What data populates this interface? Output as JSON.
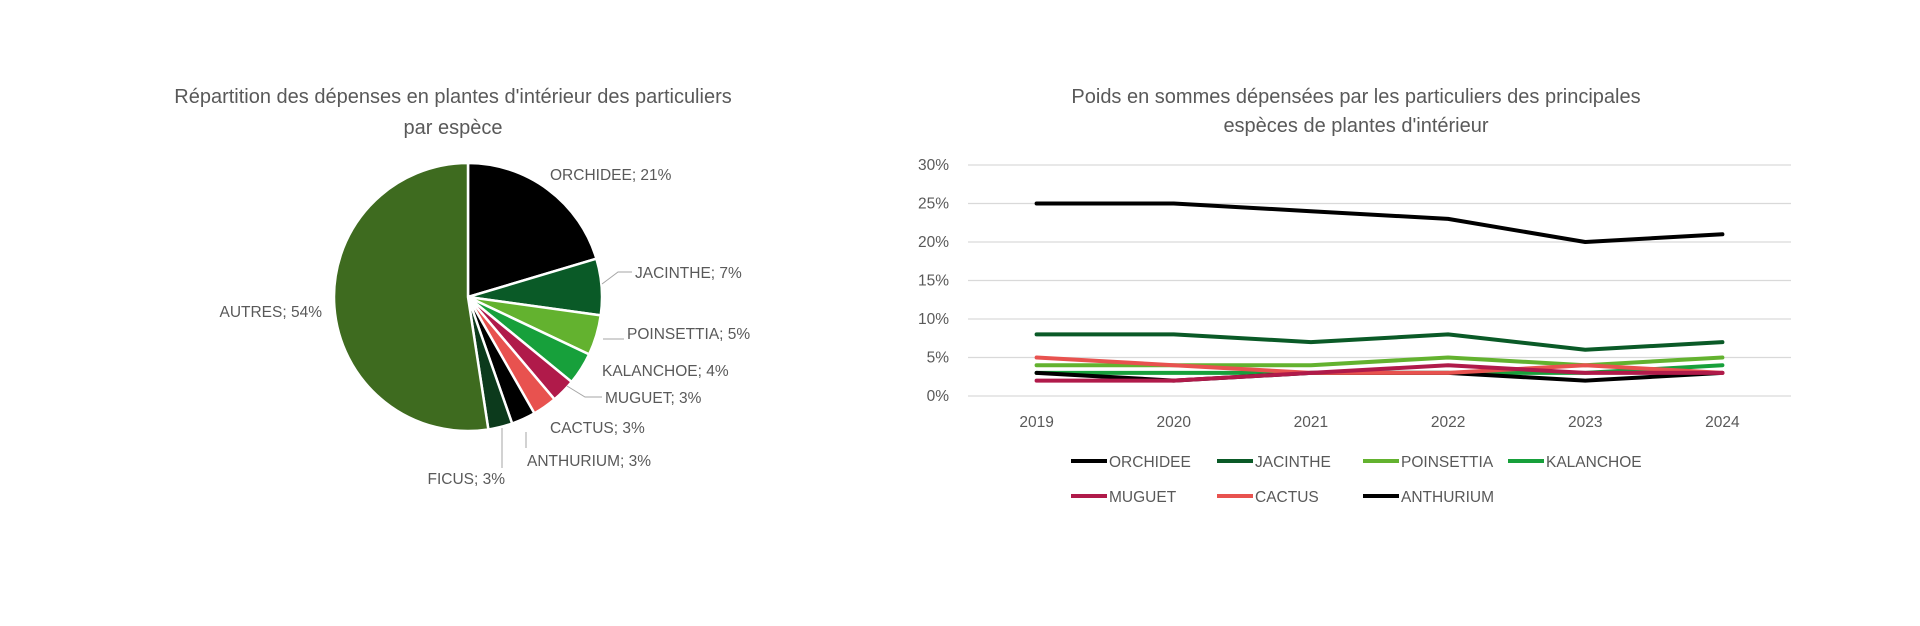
{
  "chart_data": [
    {
      "type": "pie",
      "title_lines": [
        "Répartition des dépenses en plantes d'intérieur des particuliers",
        "par espèce"
      ],
      "slices": [
        {
          "label": "ORCHIDEE",
          "value": 21,
          "display": "ORCHIDEE; 21%",
          "color": "#000000"
        },
        {
          "label": "JACINTHE",
          "value": 7,
          "display": "JACINTHE; 7%",
          "color": "#0a5a27"
        },
        {
          "label": "POINSETTIA",
          "value": 5,
          "display": "POINSETTIA; 5%",
          "color": "#63b22f"
        },
        {
          "label": "KALANCHOE",
          "value": 4,
          "display": "KALANCHOE; 4%",
          "color": "#17a03b"
        },
        {
          "label": "MUGUET",
          "value": 3,
          "display": "MUGUET; 3%",
          "color": "#b01a4a"
        },
        {
          "label": "CACTUS",
          "value": 3,
          "display": "CACTUS; 3%",
          "color": "#e8524f"
        },
        {
          "label": "ANTHURIUM",
          "value": 3,
          "display": "ANTHURIUM; 3%",
          "color": "#000000"
        },
        {
          "label": "FICUS",
          "value": 3,
          "display": "FICUS; 3%",
          "color": "#0c3a1c"
        },
        {
          "label": "AUTRES",
          "value": 54,
          "display": "AUTRES; 54%",
          "color": "#3e6b1f"
        }
      ]
    },
    {
      "type": "line",
      "title_lines": [
        "Poids en sommes dépensées par les particuliers des principales",
        "espèces de plantes d'intérieur"
      ],
      "categories": [
        "2019",
        "2020",
        "2021",
        "2022",
        "2023",
        "2024"
      ],
      "ylim": [
        0,
        30
      ],
      "yticks": [
        "0%",
        "5%",
        "10%",
        "15%",
        "20%",
        "25%",
        "30%"
      ],
      "grid": true,
      "legend_position": "bottom",
      "series": [
        {
          "name": "ORCHIDEE",
          "color": "#000000",
          "values": [
            25,
            25,
            24,
            23,
            20,
            21
          ]
        },
        {
          "name": "JACINTHE",
          "color": "#0a5a27",
          "values": [
            8,
            8,
            7,
            8,
            6,
            7
          ]
        },
        {
          "name": "POINSETTIA",
          "color": "#63b22f",
          "values": [
            4,
            4,
            4,
            5,
            4,
            5
          ]
        },
        {
          "name": "KALANCHOE",
          "color": "#17a03b",
          "values": [
            3,
            3,
            3,
            3,
            3,
            4
          ]
        },
        {
          "name": "MUGUET",
          "color": "#b01a4a",
          "values": [
            2,
            2,
            3,
            4,
            3,
            3
          ]
        },
        {
          "name": "CACTUS",
          "color": "#e8524f",
          "values": [
            5,
            4,
            3,
            3,
            4,
            3
          ]
        },
        {
          "name": "ANTHURIUM",
          "color": "#000000",
          "values": [
            3,
            2,
            3,
            3,
            2,
            3
          ]
        }
      ]
    }
  ]
}
